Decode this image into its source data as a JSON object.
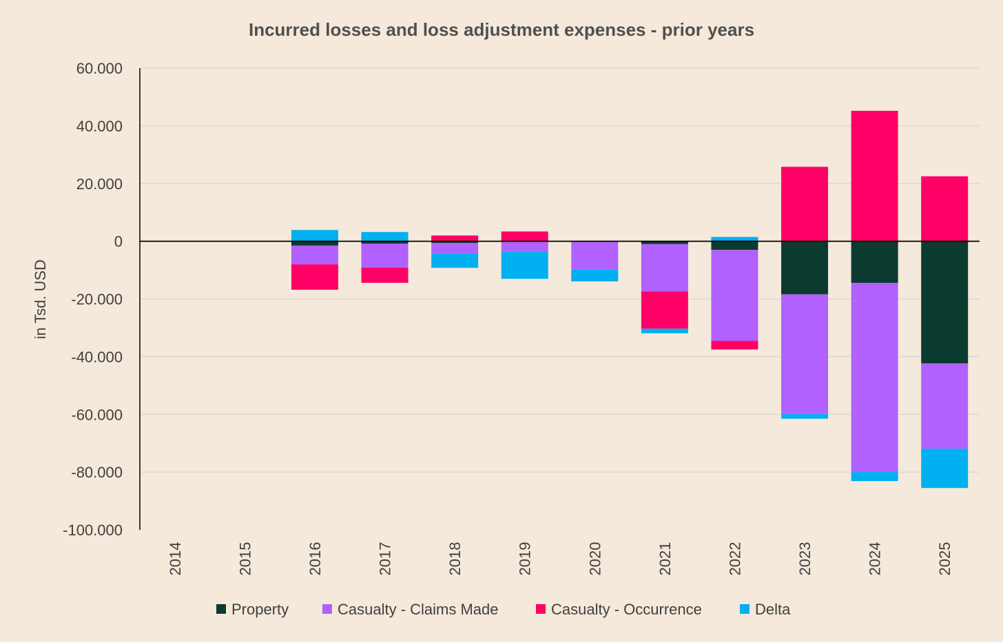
{
  "chart_data": {
    "type": "bar",
    "stacked": true,
    "title": "Incurred losses and loss adjustment expenses - prior years",
    "xlabel": "",
    "ylabel": "in Tsd. USD",
    "ylim": [
      -100000,
      60000
    ],
    "yticks": [
      60000,
      40000,
      20000,
      0,
      -20000,
      -40000,
      -60000,
      -80000,
      -100000
    ],
    "ytick_labels": [
      "60.000",
      "40.000",
      "20.000",
      "0",
      "-20.000",
      "-40.000",
      "-60.000",
      "-80.000",
      "-100.000"
    ],
    "grid": true,
    "legend_position": "bottom",
    "categories": [
      "2014",
      "2015",
      "2016",
      "2017",
      "2018",
      "2019",
      "2020",
      "2021",
      "2022",
      "2023",
      "2024",
      "2025"
    ],
    "series": [
      {
        "name": "Property",
        "color": "#0B3B2E",
        "values": [
          0,
          0,
          -1500,
          -800,
          -600,
          -200,
          -200,
          -1000,
          -3000,
          -18400,
          -14400,
          -42300
        ]
      },
      {
        "name": "Casualty - Claims Made",
        "color": "#B061FF",
        "values": [
          0,
          0,
          -6500,
          -8300,
          -3600,
          -3400,
          -9600,
          -16400,
          -31500,
          -41500,
          -65600,
          -29600
        ]
      },
      {
        "name": "Casualty - Occurrence",
        "color": "#FF0066",
        "values": [
          0,
          0,
          -8800,
          -5300,
          2000,
          3400,
          0,
          -12900,
          -3000,
          25800,
          45200,
          22500
        ]
      },
      {
        "name": "Delta",
        "color": "#00B0F0",
        "values": [
          0,
          0,
          3900,
          3200,
          -5000,
          -9400,
          -4100,
          -1600,
          1500,
          -1600,
          -3100,
          -13600
        ]
      }
    ]
  }
}
